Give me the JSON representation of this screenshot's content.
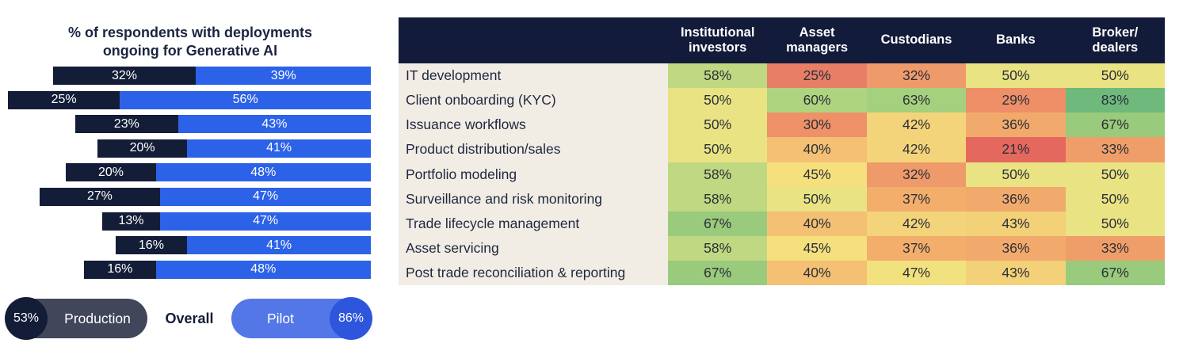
{
  "page": {
    "background": "#ffffff"
  },
  "legend": {
    "production_pct": "53%",
    "production_label": "Production",
    "overall_label": "Overall",
    "pilot_label": "Pilot",
    "pilot_pct": "86%",
    "production_pill_color": "#42465a",
    "production_badge_color": "#141d38",
    "pilot_pill_color": "#5477e7",
    "pilot_badge_color": "#2e56dd"
  },
  "chart_data": [
    {
      "type": "bar",
      "orientation": "horizontal-stacked",
      "alignment": "right-aligned",
      "title": "% of respondents with deployments ongoing for Generative AI",
      "value_suffix": "%",
      "series": [
        {
          "name": "Production",
          "color": "#141d38",
          "values": [
            32,
            25,
            23,
            20,
            20,
            27,
            13,
            16,
            16
          ]
        },
        {
          "name": "Pilot",
          "color": "#2c62e8",
          "values": [
            39,
            56,
            43,
            41,
            48,
            47,
            47,
            41,
            48
          ]
        }
      ],
      "overall": {
        "production": 53,
        "pilot": 86
      }
    },
    {
      "type": "heatmap",
      "value_suffix": "%",
      "header_bg": "#131b3a",
      "row_label_bg": "#f1ede4",
      "columns": [
        "Institutional investors",
        "Asset managers",
        "Custodians",
        "Banks",
        "Broker/\ndealers"
      ],
      "rows": [
        "IT development",
        "Client onboarding (KYC)",
        "Issuance workflows",
        "Product distribution/sales",
        "Portfolio modeling",
        "Surveillance and risk monitoring",
        "Trade lifecycle management",
        "Asset servicing",
        "Post trade reconciliation & reporting"
      ],
      "values": [
        [
          58,
          25,
          32,
          50,
          50
        ],
        [
          50,
          60,
          63,
          29,
          83
        ],
        [
          50,
          30,
          42,
          36,
          67
        ],
        [
          50,
          40,
          42,
          21,
          33
        ],
        [
          58,
          45,
          32,
          50,
          50
        ],
        [
          58,
          50,
          37,
          36,
          50
        ],
        [
          67,
          40,
          42,
          43,
          50
        ],
        [
          58,
          45,
          37,
          36,
          33
        ],
        [
          67,
          40,
          47,
          43,
          67
        ]
      ],
      "cell_colors": [
        [
          "#bfd881",
          "#e87e66",
          "#ef9a6b",
          "#e9e383",
          "#e9e383"
        ],
        [
          "#e9e383",
          "#aed47f",
          "#a5d07e",
          "#ee8f68",
          "#6fb97c"
        ],
        [
          "#e9e383",
          "#ee9168",
          "#f4d47a",
          "#f2aa6c",
          "#9aca7c"
        ],
        [
          "#e9e383",
          "#f4c074",
          "#f4d47a",
          "#e5685f",
          "#f09e69"
        ],
        [
          "#bfd881",
          "#f6e07e",
          "#ef9a6b",
          "#e9e383",
          "#e9e383"
        ],
        [
          "#bfd881",
          "#e9e383",
          "#f3ae6c",
          "#f2aa6c",
          "#e9e383"
        ],
        [
          "#9aca7c",
          "#f4c074",
          "#f4d47a",
          "#f3d178",
          "#e9e383"
        ],
        [
          "#bfd881",
          "#f6e07e",
          "#f3ae6c",
          "#f2aa6c",
          "#f09e69"
        ],
        [
          "#9aca7c",
          "#f4c074",
          "#f2e17f",
          "#f3d178",
          "#9aca7c"
        ]
      ]
    }
  ]
}
